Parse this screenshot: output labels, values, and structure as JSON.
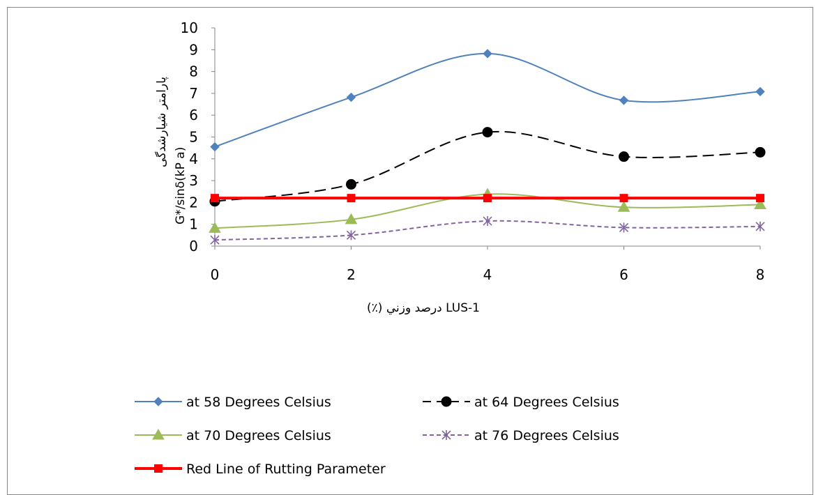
{
  "chart_data": {
    "type": "line",
    "xlabel": "(٪) درصد وزني LUS-1",
    "ylabel_latin": "G*/sinδ(kP a)",
    "ylabel_persian": "پارامتر شيارشدگی",
    "x": [
      0,
      2,
      4,
      6,
      8
    ],
    "x_ticks": [
      "0",
      "2",
      "4",
      "6",
      "8"
    ],
    "xlim": [
      0,
      8
    ],
    "ylim": [
      0,
      10
    ],
    "y_ticks": [
      "0",
      "1",
      "2",
      "3",
      "4",
      "5",
      "6",
      "7",
      "8",
      "9",
      "10"
    ],
    "grid": false,
    "legend_position": "bottom",
    "series": [
      {
        "name": "at 58 Degrees Celsius",
        "values": [
          4.55,
          6.82,
          8.82,
          6.68,
          7.08
        ],
        "color": "#4f81bd",
        "marker": "diamond",
        "dash": "solid",
        "smooth": true
      },
      {
        "name": "at 64 Degrees Celsius",
        "values": [
          2.05,
          2.83,
          5.22,
          4.1,
          4.3
        ],
        "color": "#000000",
        "marker": "circle",
        "dash": "dashed",
        "smooth": true
      },
      {
        "name": "at 70 Degrees Celsius",
        "values": [
          0.82,
          1.22,
          2.38,
          1.78,
          1.9
        ],
        "color": "#9bbb59",
        "marker": "triangle",
        "dash": "solid",
        "smooth": true
      },
      {
        "name": "at 76 Degrees Celsius",
        "values": [
          0.28,
          0.5,
          1.15,
          0.85,
          0.9
        ],
        "color": "#8064a2",
        "marker": "star",
        "dash": "dotted",
        "smooth": true
      },
      {
        "name": "Red Line of Rutting Parameter",
        "values": [
          2.2,
          2.2,
          2.2,
          2.2,
          2.2
        ],
        "color": "#ff0000",
        "marker": "square",
        "dash": "solid",
        "smooth": false
      }
    ]
  }
}
